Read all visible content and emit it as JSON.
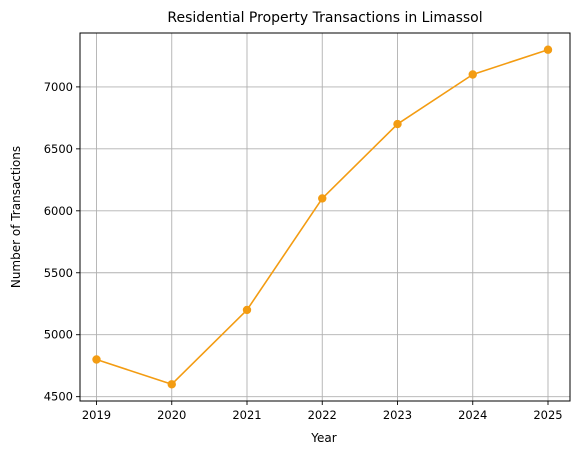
{
  "chart_data": {
    "type": "line",
    "title": "Residential Property Transactions in Limassol",
    "xlabel": "Year",
    "ylabel": "Number of Transactions",
    "x": [
      "2019",
      "2020",
      "2021",
      "2022",
      "2023",
      "2024",
      "2025"
    ],
    "series": [
      {
        "values": [
          4800,
          4600,
          5200,
          6100,
          6700,
          7100,
          7300
        ],
        "color": "#f39c12",
        "marker": "circle"
      }
    ],
    "yticks": [
      4500,
      5000,
      5500,
      6000,
      6500,
      7000
    ],
    "ylim": [
      4465,
      7435
    ],
    "grid": true
  }
}
